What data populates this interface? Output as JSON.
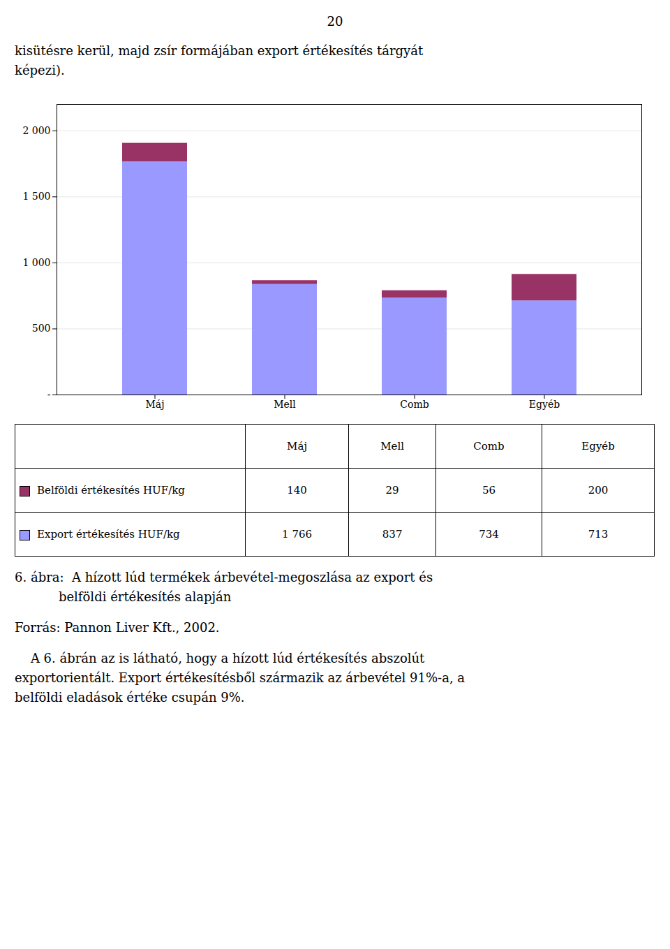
{
  "page_number": "20",
  "text_before": [
    "kisütésre kerül, majd zsír formájában export értékesítés tárgyát",
    "képezi)."
  ],
  "chart_data": {
    "type": "bar",
    "stacked": true,
    "categories": [
      "Máj",
      "Mell",
      "Comb",
      "Egyéb"
    ],
    "series": [
      {
        "name": "Export értékesítés HUF/kg",
        "color": "#9999ff",
        "values": [
          1766,
          837,
          734,
          713
        ],
        "value_labels": [
          "1 766",
          "837",
          "734",
          "713"
        ]
      },
      {
        "name": "Belföldi értékesítés HUF/kg",
        "color": "#993366",
        "values": [
          140,
          29,
          56,
          200
        ]
      }
    ],
    "ylim": [
      0,
      2200
    ],
    "yticks": [
      {
        "value": 0,
        "label": "-"
      },
      500,
      {
        "value": 1000,
        "label": "1 000"
      },
      {
        "value": 1500,
        "label": "1 500"
      },
      {
        "value": 2000,
        "label": "2 000"
      }
    ],
    "grid": true
  },
  "text_after": [
    [
      "6. ábra:  A hízott lúd termékek árbevétel-megoszlása az export és",
      "           belföldi értékesítés alapján"
    ],
    [
      "Forrás: Pannon Liver Kft., 2002."
    ],
    [
      "    A 6. ábrán az is látható, hogy a hízott lúd értékesítés abszolút",
      "exportorientált. Export értékesítésből származik az árbevétel 91%-a, a",
      "belföldi eladások értéke csupán 9%."
    ]
  ]
}
